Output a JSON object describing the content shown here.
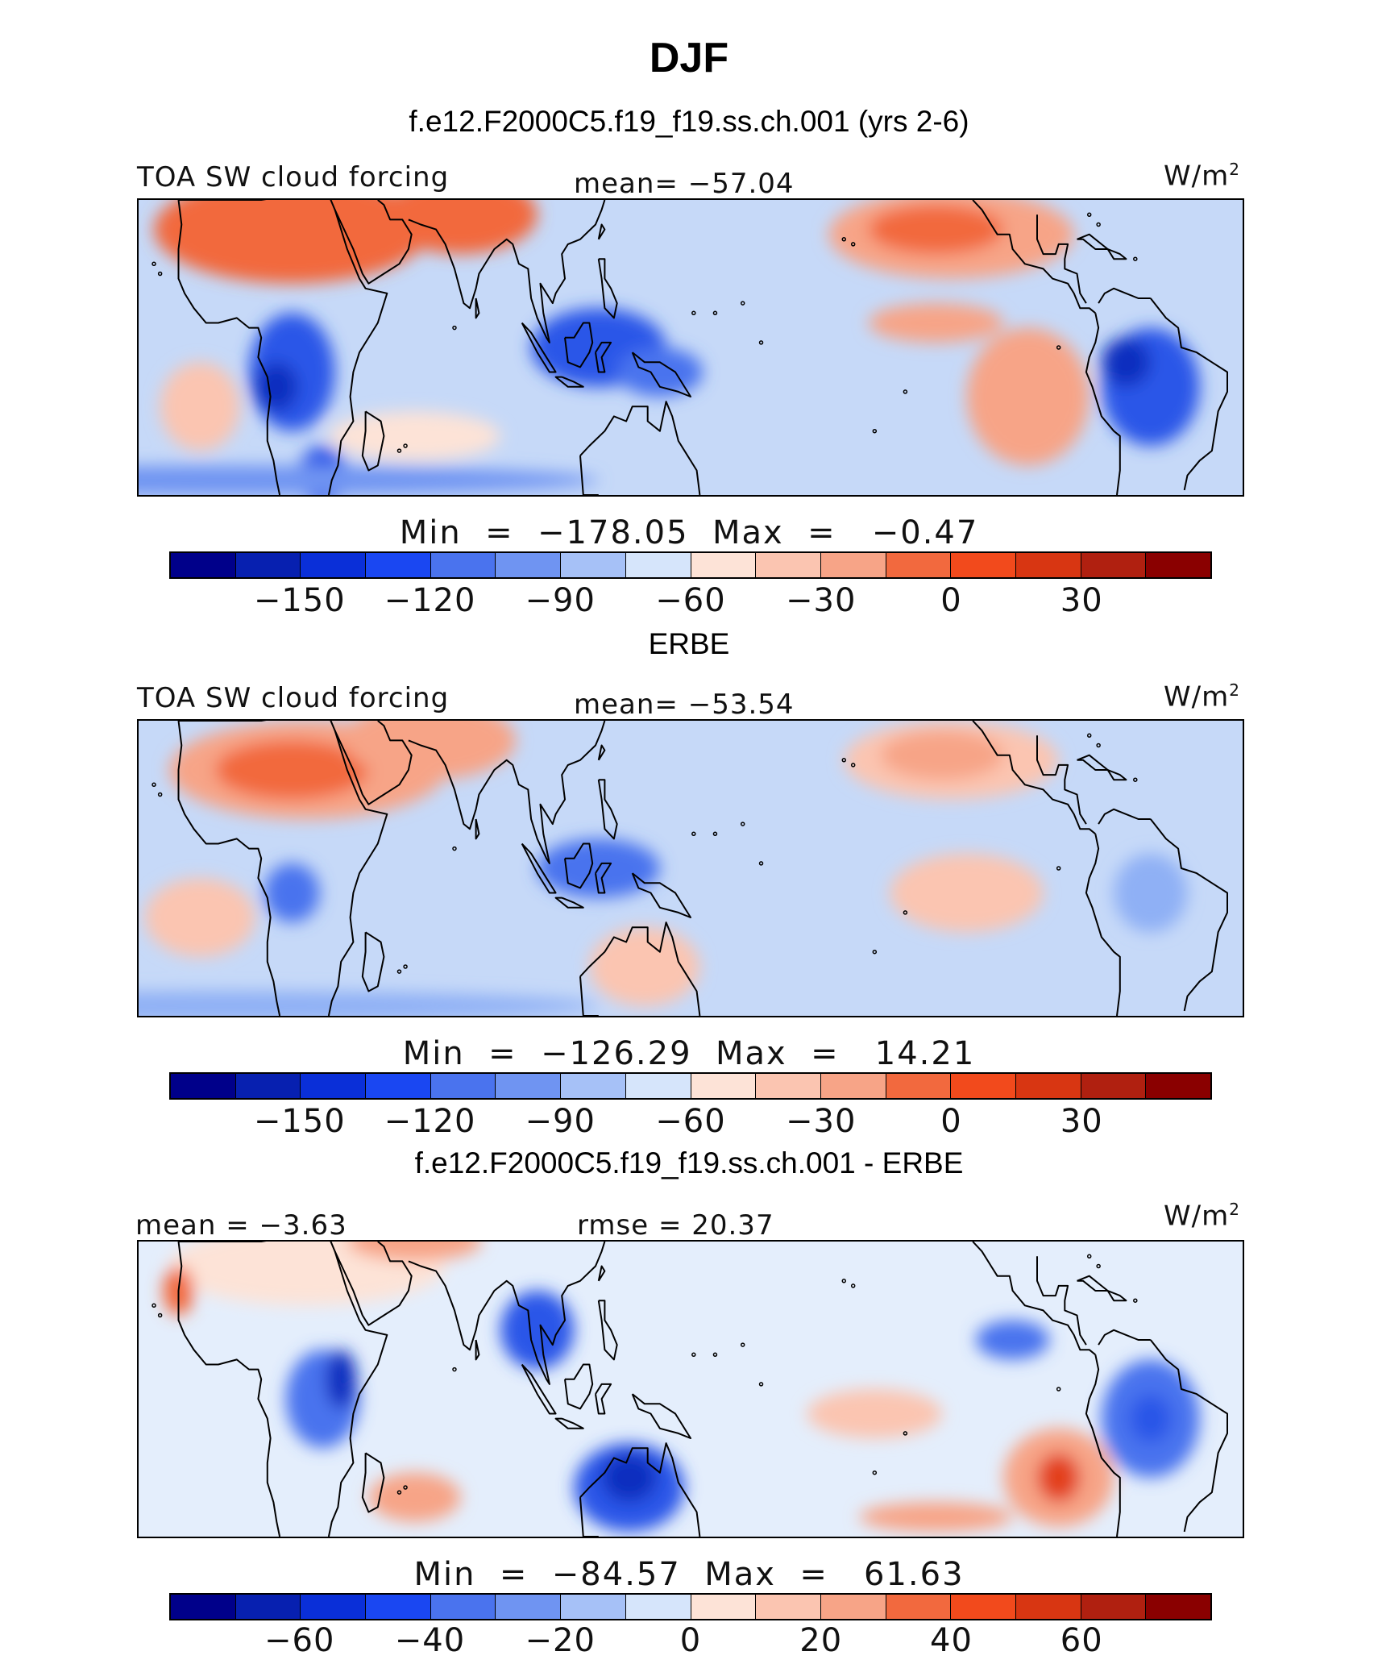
{
  "title": "DJF",
  "panels": [
    {
      "subtitle": "f.e12.F2000C5.f19_f19.ss.ch.001 (yrs 2-6)",
      "left_label": "TOA SW cloud forcing",
      "center_label": "mean= −57.04",
      "units": "W/m",
      "units_sup": "2",
      "stats": "Min  =  −178.05  Max  =   −0.47",
      "base": "#c6d9f8",
      "blobs": [
        {
          "lon": 20,
          "lat": 24,
          "rx": 45,
          "ry": 11,
          "c": "#f2693e"
        },
        {
          "lon": 75,
          "lat": 27,
          "rx": 25,
          "ry": 8,
          "c": "#f2693e"
        },
        {
          "lon": -125,
          "lat": 23,
          "rx": 40,
          "ry": 9,
          "c": "#f7a487"
        },
        {
          "lon": -130,
          "lat": 24,
          "rx": 22,
          "ry": 5,
          "c": "#f2693e"
        },
        {
          "lon": -100,
          "lat": -10,
          "rx": 20,
          "ry": 14,
          "c": "#f7a487"
        },
        {
          "lon": -130,
          "lat": 5,
          "rx": 22,
          "ry": 4,
          "c": "#f7a487"
        },
        {
          "lon": -10,
          "lat": -12,
          "rx": 13,
          "ry": 9,
          "c": "#fbc5b1"
        },
        {
          "lon": 20,
          "lat": -5,
          "rx": 14,
          "ry": 12,
          "c": "#2a57e8"
        },
        {
          "lon": 15,
          "lat": -8,
          "rx": 7,
          "ry": 5,
          "c": "#0a2fbf"
        },
        {
          "lon": -60,
          "lat": -8,
          "rx": 16,
          "ry": 12,
          "c": "#2a57e8"
        },
        {
          "lon": -68,
          "lat": -3,
          "rx": 8,
          "ry": 5,
          "c": "#0a2fbf"
        },
        {
          "lon": 120,
          "lat": 0,
          "rx": 22,
          "ry": 8,
          "c": "#2a57e8"
        },
        {
          "lon": 140,
          "lat": -5,
          "rx": 14,
          "ry": 5,
          "c": "#4a73ee"
        },
        {
          "lon": 60,
          "lat": -18,
          "rx": 28,
          "ry": 5,
          "c": "#fde3d7"
        },
        {
          "lon": 30,
          "lat": -26,
          "rx": 8,
          "ry": 6,
          "c": "#2a57e8"
        },
        {
          "lon": 0,
          "lat": -27,
          "rx": 120,
          "ry": 3,
          "c": "#6f94f2"
        }
      ]
    },
    {
      "subtitle": "ERBE",
      "left_label": "TOA SW cloud forcing",
      "center_label": "mean= −53.54",
      "units": "W/m",
      "units_sup": "2",
      "stats": "Min  =  −126.29  Max  =   14.21",
      "base": "#c6d9f8",
      "blobs": [
        {
          "lon": 25,
          "lat": 20,
          "rx": 45,
          "ry": 10,
          "c": "#f7a487"
        },
        {
          "lon": 20,
          "lat": 20,
          "rx": 25,
          "ry": 6,
          "c": "#f2693e"
        },
        {
          "lon": 65,
          "lat": 26,
          "rx": 28,
          "ry": 8,
          "c": "#f7a487"
        },
        {
          "lon": -125,
          "lat": 22,
          "rx": 35,
          "ry": 8,
          "c": "#fbc5b1"
        },
        {
          "lon": -128,
          "lat": 23,
          "rx": 20,
          "ry": 5,
          "c": "#f7a487"
        },
        {
          "lon": -120,
          "lat": -5,
          "rx": 25,
          "ry": 8,
          "c": "#fbc5b1"
        },
        {
          "lon": 135,
          "lat": -20,
          "rx": 18,
          "ry": 8,
          "c": "#fbc5b1"
        },
        {
          "lon": -10,
          "lat": -10,
          "rx": 18,
          "ry": 8,
          "c": "#fbc5b1"
        },
        {
          "lon": 20,
          "lat": -5,
          "rx": 9,
          "ry": 6,
          "c": "#4a73ee"
        },
        {
          "lon": 120,
          "lat": 0,
          "rx": 20,
          "ry": 6,
          "c": "#4a73ee"
        },
        {
          "lon": -60,
          "lat": -5,
          "rx": 12,
          "ry": 8,
          "c": "#8fb0f5"
        },
        {
          "lon": 0,
          "lat": -28,
          "rx": 120,
          "ry": 3,
          "c": "#8fb0f5"
        }
      ]
    },
    {
      "subtitle": "f.e12.F2000C5.f19_f19.ss.ch.001 - ERBE",
      "left_label": "mean =   −3.63",
      "center_label": "rmse =   20.37",
      "units": "W/m",
      "units_sup": "2",
      "stats": "Min  =  −84.57  Max  =   61.63",
      "base": "#e4eefc",
      "blobs": [
        {
          "lon": 25,
          "lat": 25,
          "rx": 45,
          "ry": 8,
          "c": "#fde3d7"
        },
        {
          "lon": 60,
          "lat": 30,
          "rx": 22,
          "ry": 4,
          "c": "#f7a487"
        },
        {
          "lon": -17,
          "lat": 20,
          "rx": 5,
          "ry": 5,
          "c": "#f2693e"
        },
        {
          "lon": 30,
          "lat": -2,
          "rx": 12,
          "ry": 10,
          "c": "#4a73ee"
        },
        {
          "lon": 36,
          "lat": 2,
          "rx": 5,
          "ry": 6,
          "c": "#0a2fbf"
        },
        {
          "lon": 100,
          "lat": 12,
          "rx": 12,
          "ry": 8,
          "c": "#2a57e8"
        },
        {
          "lon": 130,
          "lat": -20,
          "rx": 18,
          "ry": 9,
          "c": "#2a57e8"
        },
        {
          "lon": 130,
          "lat": -18,
          "rx": 9,
          "ry": 5,
          "c": "#0a2fbf"
        },
        {
          "lon": -60,
          "lat": -6,
          "rx": 16,
          "ry": 12,
          "c": "#4a73ee"
        },
        {
          "lon": -60,
          "lat": -6,
          "rx": 7,
          "ry": 5,
          "c": "#2a57e8"
        },
        {
          "lon": -90,
          "lat": -18,
          "rx": 18,
          "ry": 10,
          "c": "#f7a487"
        },
        {
          "lon": -90,
          "lat": -18,
          "rx": 7,
          "ry": 5,
          "c": "#e3401c"
        },
        {
          "lon": -150,
          "lat": -5,
          "rx": 22,
          "ry": 5,
          "c": "#fbc5b1"
        },
        {
          "lon": 60,
          "lat": -22,
          "rx": 15,
          "ry": 5,
          "c": "#f7a487"
        },
        {
          "lon": -130,
          "lat": -26,
          "rx": 25,
          "ry": 3,
          "c": "#f7a487"
        },
        {
          "lon": -105,
          "lat": 10,
          "rx": 12,
          "ry": 4,
          "c": "#4a73ee"
        }
      ]
    }
  ],
  "colorbars": [
    {
      "colors": [
        "#00008a",
        "#0720b0",
        "#0a2fd8",
        "#1a47f2",
        "#4a73ee",
        "#6f94f2",
        "#a6c1f7",
        "#d6e5fb",
        "#fde3d7",
        "#fbc5b1",
        "#f7a487",
        "#f2693e",
        "#f24a1c",
        "#d83612",
        "#b02010",
        "#8a0000"
      ],
      "ticks": [
        {
          "label": "−150",
          "pos": 0.125
        },
        {
          "label": "−120",
          "pos": 0.25
        },
        {
          "label": "−90",
          "pos": 0.375
        },
        {
          "label": "−60",
          "pos": 0.5
        },
        {
          "label": "−30",
          "pos": 0.625
        },
        {
          "label": "0",
          "pos": 0.75
        },
        {
          "label": "30",
          "pos": 0.875
        }
      ]
    },
    {
      "colors": [
        "#00008a",
        "#0720b0",
        "#0a2fd8",
        "#1a47f2",
        "#4a73ee",
        "#6f94f2",
        "#a6c1f7",
        "#d6e5fb",
        "#fde3d7",
        "#fbc5b1",
        "#f7a487",
        "#f2693e",
        "#f24a1c",
        "#d83612",
        "#b02010",
        "#8a0000"
      ],
      "ticks": [
        {
          "label": "−150",
          "pos": 0.125
        },
        {
          "label": "−120",
          "pos": 0.25
        },
        {
          "label": "−90",
          "pos": 0.375
        },
        {
          "label": "−60",
          "pos": 0.5
        },
        {
          "label": "−30",
          "pos": 0.625
        },
        {
          "label": "0",
          "pos": 0.75
        },
        {
          "label": "30",
          "pos": 0.875
        }
      ]
    },
    {
      "colors": [
        "#00008a",
        "#0720b0",
        "#0a2fd8",
        "#1a47f2",
        "#4a73ee",
        "#6f94f2",
        "#a6c1f7",
        "#d6e5fb",
        "#fde3d7",
        "#fbc5b1",
        "#f7a487",
        "#f2693e",
        "#f24a1c",
        "#d83612",
        "#b02010",
        "#8a0000"
      ],
      "ticks": [
        {
          "label": "−60",
          "pos": 0.125
        },
        {
          "label": "−40",
          "pos": 0.25
        },
        {
          "label": "−20",
          "pos": 0.375
        },
        {
          "label": "0",
          "pos": 0.5
        },
        {
          "label": "20",
          "pos": 0.625
        },
        {
          "label": "40",
          "pos": 0.75
        },
        {
          "label": "60",
          "pos": 0.875
        }
      ]
    }
  ],
  "chart_data": [
    {
      "type": "heatmap",
      "title": "f.e12.F2000C5.f19_f19.ss.ch.001 (yrs 2-6)",
      "variable": "TOA SW cloud forcing",
      "units": "W/m2",
      "mean": -57.04,
      "min": -178.05,
      "max": -0.47,
      "xlim": [
        -30,
        330
      ],
      "ylim": [
        -30,
        30
      ],
      "levels": [
        -170,
        -160,
        -150,
        -140,
        -130,
        -120,
        -110,
        -100,
        -90,
        -80,
        -70,
        -60,
        -50,
        -40,
        -30,
        -20,
        -10,
        0,
        10,
        20,
        30,
        40
      ]
    },
    {
      "type": "heatmap",
      "title": "ERBE",
      "variable": "TOA SW cloud forcing",
      "units": "W/m2",
      "mean": -53.54,
      "min": -126.29,
      "max": 14.21,
      "xlim": [
        -30,
        330
      ],
      "ylim": [
        -30,
        30
      ]
    },
    {
      "type": "heatmap",
      "title": "f.e12.F2000C5.f19_f19.ss.ch.001 - ERBE",
      "units": "W/m2",
      "mean": -3.63,
      "rmse": 20.37,
      "min": -84.57,
      "max": 61.63,
      "xlim": [
        -30,
        330
      ],
      "ylim": [
        -30,
        30
      ]
    }
  ]
}
